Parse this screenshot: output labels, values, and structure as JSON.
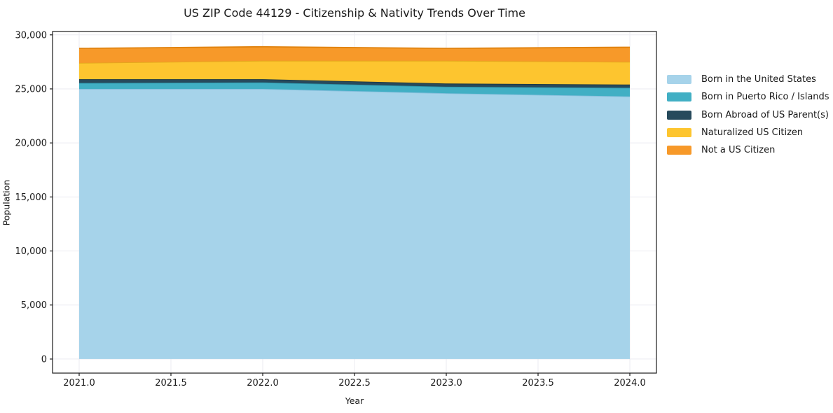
{
  "chart": {
    "title": "US ZIP Code 44129 - Citizenship & Nativity Trends Over Time",
    "xlabel": "Year",
    "ylabel": "Population"
  },
  "chart_data": {
    "type": "area",
    "stacked": true,
    "title": "US ZIP Code 44129 - Citizenship & Nativity Trends Over Time",
    "xlabel": "Year",
    "ylabel": "Population",
    "x": [
      2021,
      2022,
      2023,
      2024
    ],
    "series": [
      {
        "name": "Born in the United States",
        "values": [
          25000,
          25000,
          24600,
          24300
        ],
        "color": "#A6D3EA",
        "edge": "#85BEDC"
      },
      {
        "name": "Born in Puerto Rico / Islands",
        "values": [
          550,
          600,
          600,
          800
        ],
        "color": "#41AFC4",
        "edge": "#2D93A8"
      },
      {
        "name": "Born Abroad of US Parent(s)",
        "values": [
          350,
          300,
          300,
          300
        ],
        "color": "#274A5C",
        "edge": "#1C3845"
      },
      {
        "name": "Naturalized US Citizen",
        "values": [
          1500,
          1700,
          2100,
          2100
        ],
        "color": "#FDC52F",
        "edge": "#E3A81C"
      },
      {
        "name": "Not a US Citizen",
        "values": [
          1350,
          1300,
          1150,
          1350
        ],
        "color": "#F79929",
        "edge": "#E0820E"
      }
    ],
    "xticks": [
      "2021.0",
      "2021.5",
      "2022.0",
      "2022.5",
      "2023.0",
      "2023.5",
      "2024.0"
    ],
    "xtick_values": [
      2021,
      2021.5,
      2022,
      2022.5,
      2023,
      2023.5,
      2024
    ],
    "yticks": [
      "0",
      "5,000",
      "10,000",
      "15,000",
      "20,000",
      "25,000",
      "30,000"
    ],
    "ytick_values": [
      0,
      5000,
      10000,
      15000,
      20000,
      25000,
      30000
    ],
    "xlim": [
      2020.855,
      2024.145
    ],
    "ylim": [
      -1300,
      30310
    ],
    "grid": true,
    "legend_position": "right-outside"
  },
  "colors": {
    "background": "#ffffff",
    "grid": "#ebebf1",
    "spine": "#1a1a1a",
    "tick": "#1a1a1a",
    "text": "#1a1a1a"
  }
}
